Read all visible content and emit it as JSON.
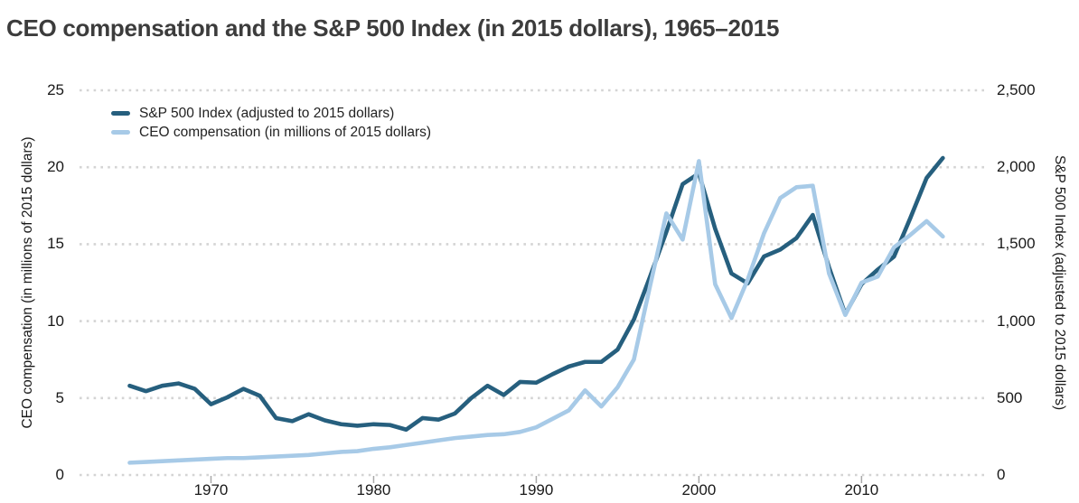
{
  "title": "CEO compensation and the S&P 500 Index (in 2015 dollars), 1965–2015",
  "colors": {
    "sp500_line": "#265f7e",
    "ceo_line": "#a7cae7",
    "gridline": "#d4d4d4",
    "axis_tick": "#a9a9a9",
    "text": "#191919",
    "title_text": "#3c3c3c"
  },
  "legend": {
    "items": [
      {
        "label": "S&P 500 Index (adjusted to 2015 dollars)",
        "series": "sp500"
      },
      {
        "label": "CEO compensation (in millions of 2015 dollars)",
        "series": "ceo"
      }
    ]
  },
  "left_axis": {
    "title": "CEO compensation (in millions of 2015 dollars)",
    "tick_labels": [
      "0",
      "5",
      "10",
      "15",
      "20",
      "25"
    ],
    "tick_values": [
      0,
      5,
      10,
      15,
      20,
      25
    ]
  },
  "right_axis": {
    "title": "S&P 500 Index (adjusted to 2015 dollars)",
    "tick_labels": [
      "0",
      "500",
      "1,000",
      "1,500",
      "2,000",
      "2,500"
    ],
    "tick_values": [
      0,
      500,
      1000,
      1500,
      2000,
      2500
    ]
  },
  "x_axis": {
    "tick_labels": [
      "1970",
      "1980",
      "1990",
      "2000",
      "2010"
    ],
    "tick_values": [
      1970,
      1980,
      1990,
      2000,
      2010
    ]
  },
  "chart_data": {
    "type": "line",
    "title": "CEO compensation and the S&P 500 Index (in 2015 dollars), 1965–2015",
    "x": [
      1965,
      1966,
      1967,
      1968,
      1969,
      1970,
      1971,
      1972,
      1973,
      1974,
      1975,
      1976,
      1977,
      1978,
      1979,
      1980,
      1981,
      1982,
      1983,
      1984,
      1985,
      1986,
      1987,
      1988,
      1989,
      1990,
      1991,
      1992,
      1993,
      1994,
      1995,
      1996,
      1997,
      1998,
      1999,
      2000,
      2001,
      2002,
      2003,
      2004,
      2005,
      2006,
      2007,
      2008,
      2009,
      2010,
      2011,
      2012,
      2013,
      2014,
      2015
    ],
    "xlim": [
      1965,
      2015
    ],
    "grid": "horizontal-dotted",
    "legend_position": "top-left-inside",
    "series": [
      {
        "name": "S&P 500 Index (adjusted to 2015 dollars)",
        "axis": "right",
        "ylim": [
          0,
          2500
        ],
        "values": [
          580,
          545,
          580,
          595,
          560,
          460,
          505,
          560,
          515,
          370,
          350,
          395,
          355,
          330,
          320,
          330,
          325,
          295,
          370,
          360,
          400,
          500,
          580,
          520,
          605,
          600,
          655,
          705,
          735,
          735,
          815,
          1010,
          1290,
          1580,
          1890,
          1960,
          1600,
          1310,
          1245,
          1420,
          1465,
          1540,
          1690,
          1350,
          1045,
          1240,
          1335,
          1420,
          1670,
          1930,
          2060
        ]
      },
      {
        "name": "CEO compensation (in millions of 2015 dollars)",
        "axis": "left",
        "ylim": [
          0,
          25
        ],
        "values": [
          0.8,
          0.85,
          0.9,
          0.95,
          1.0,
          1.05,
          1.1,
          1.1,
          1.15,
          1.2,
          1.25,
          1.3,
          1.4,
          1.5,
          1.55,
          1.7,
          1.8,
          1.95,
          2.1,
          2.25,
          2.4,
          2.5,
          2.6,
          2.65,
          2.8,
          3.1,
          3.65,
          4.2,
          5.5,
          4.45,
          5.7,
          7.5,
          12.3,
          17.0,
          15.3,
          20.4,
          12.4,
          10.2,
          12.7,
          15.7,
          18.0,
          18.7,
          18.8,
          13.1,
          10.4,
          12.5,
          12.9,
          14.8,
          15.6,
          16.5,
          15.5
        ]
      }
    ]
  }
}
